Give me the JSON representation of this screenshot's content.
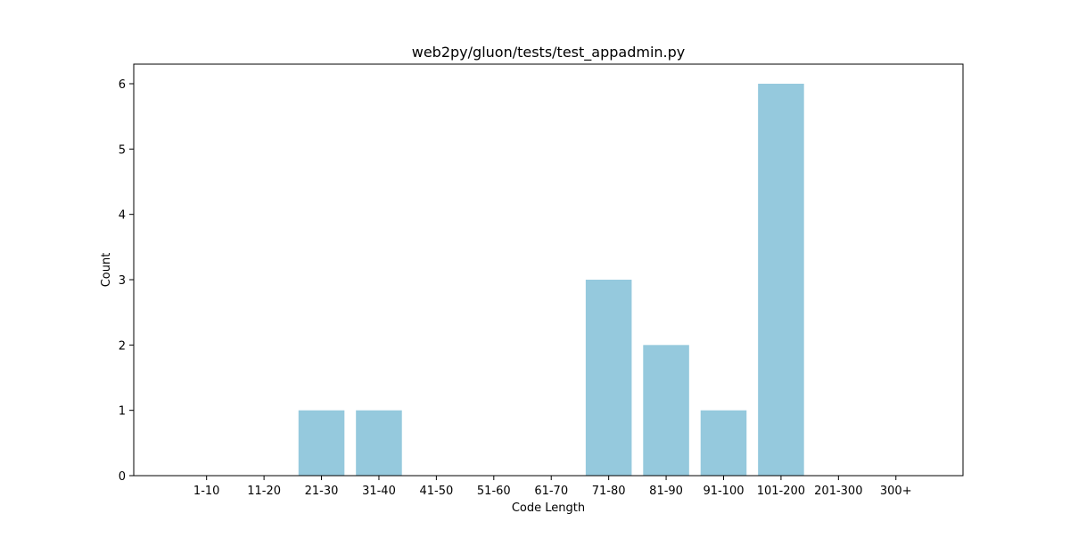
{
  "chart_data": {
    "type": "bar",
    "title": "web2py/gluon/tests/test_appadmin.py",
    "xlabel": "Code Length",
    "ylabel": "Count",
    "categories": [
      "1-10",
      "11-20",
      "21-30",
      "31-40",
      "41-50",
      "51-60",
      "61-70",
      "71-80",
      "81-90",
      "91-100",
      "101-200",
      "201-300",
      "300+"
    ],
    "values": [
      0,
      0,
      1,
      1,
      0,
      0,
      0,
      3,
      2,
      1,
      6,
      0,
      0
    ],
    "ylim": [
      0,
      6.3
    ],
    "yticks": [
      "0",
      "1",
      "2",
      "3",
      "4",
      "5",
      "6"
    ],
    "bar_color": "#95c9dd",
    "grid": false,
    "legend": false
  }
}
